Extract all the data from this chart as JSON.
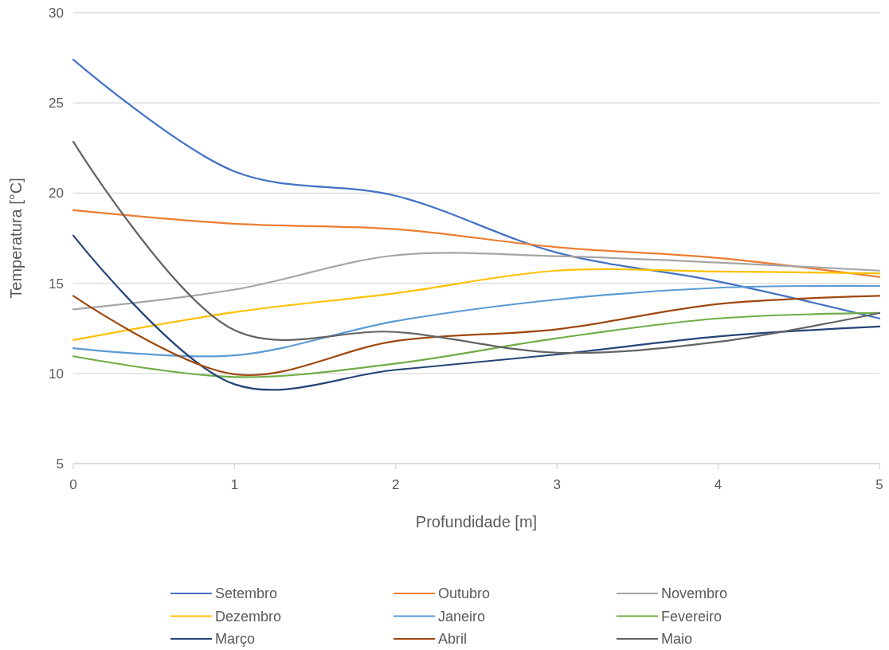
{
  "chart_data": {
    "type": "line",
    "xlabel": "Profundidade [m]",
    "ylabel": "Temperatura [°C]",
    "x": [
      0,
      1,
      2,
      3,
      4,
      5
    ],
    "xlim": [
      0,
      5
    ],
    "xticks": [
      0,
      1,
      2,
      3,
      4,
      5
    ],
    "ylim": [
      5,
      30
    ],
    "yticks": [
      5,
      10,
      15,
      20,
      25,
      30
    ],
    "grid": "y",
    "legend": "bottom",
    "marker": "none",
    "line_style": "solid",
    "series": [
      {
        "name": "Setembro",
        "color": "#4472c4",
        "values": [
          27.4,
          21.2,
          19.85,
          16.7,
          15.1,
          13.05
        ]
      },
      {
        "name": "Outubro",
        "color": "#ed7d31",
        "values": [
          19.05,
          18.3,
          18.0,
          17.0,
          16.4,
          15.35
        ]
      },
      {
        "name": "Novembro",
        "color": "#a5a5a5",
        "values": [
          13.55,
          14.65,
          16.55,
          16.5,
          16.15,
          15.7
        ]
      },
      {
        "name": "Dezembro",
        "color": "#ffc000",
        "values": [
          11.85,
          13.4,
          14.45,
          15.7,
          15.65,
          15.55
        ]
      },
      {
        "name": "Janeiro",
        "color": "#5b9bd5",
        "values": [
          11.4,
          11.0,
          12.9,
          14.1,
          14.75,
          14.85
        ]
      },
      {
        "name": "Fevereiro",
        "color": "#70ad47",
        "values": [
          10.95,
          9.8,
          10.55,
          11.95,
          13.05,
          13.35
        ]
      },
      {
        "name": "Março",
        "color": "#264478",
        "values": [
          17.65,
          9.4,
          10.2,
          11.05,
          12.05,
          12.6
        ]
      },
      {
        "name": "Abril",
        "color": "#9e480e",
        "values": [
          14.3,
          9.95,
          11.8,
          12.45,
          13.85,
          14.3
        ]
      },
      {
        "name": "Maio",
        "color": "#636363",
        "values": [
          22.85,
          12.4,
          12.3,
          11.15,
          11.75,
          13.35
        ]
      }
    ]
  }
}
